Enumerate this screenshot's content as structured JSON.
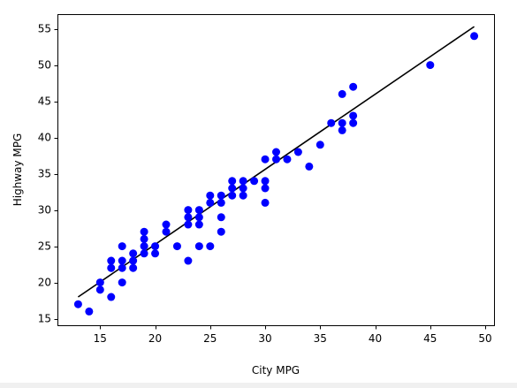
{
  "chart_data": {
    "type": "scatter",
    "title": "",
    "xlabel": "City MPG",
    "ylabel": "Highway MPG",
    "xlim": [
      11.2,
      50.8
    ],
    "ylim": [
      14.1,
      56.9
    ],
    "xticks": [
      15,
      20,
      25,
      30,
      35,
      40,
      45,
      50
    ],
    "yticks": [
      15,
      20,
      25,
      30,
      35,
      40,
      45,
      50,
      55
    ],
    "grid": false,
    "colors": {
      "points": "#0000ff",
      "line": "#000000"
    },
    "series": [
      {
        "kind": "scatter",
        "points": [
          [
            13,
            17
          ],
          [
            14,
            16
          ],
          [
            15,
            19
          ],
          [
            15,
            20
          ],
          [
            16,
            18
          ],
          [
            16,
            22
          ],
          [
            16,
            23
          ],
          [
            17,
            20
          ],
          [
            17,
            22
          ],
          [
            17,
            23
          ],
          [
            17,
            25
          ],
          [
            18,
            22
          ],
          [
            18,
            23
          ],
          [
            18,
            24
          ],
          [
            19,
            24
          ],
          [
            19,
            25
          ],
          [
            19,
            26
          ],
          [
            19,
            27
          ],
          [
            20,
            24
          ],
          [
            20,
            25
          ],
          [
            21,
            27
          ],
          [
            21,
            28
          ],
          [
            22,
            25
          ],
          [
            23,
            23
          ],
          [
            23,
            28
          ],
          [
            23,
            29
          ],
          [
            23,
            30
          ],
          [
            24,
            25
          ],
          [
            24,
            28
          ],
          [
            24,
            29
          ],
          [
            24,
            30
          ],
          [
            25,
            25
          ],
          [
            25,
            31
          ],
          [
            25,
            32
          ],
          [
            26,
            27
          ],
          [
            26,
            29
          ],
          [
            26,
            31
          ],
          [
            26,
            32
          ],
          [
            27,
            32
          ],
          [
            27,
            33
          ],
          [
            27,
            34
          ],
          [
            28,
            32
          ],
          [
            28,
            33
          ],
          [
            28,
            34
          ],
          [
            29,
            34
          ],
          [
            30,
            31
          ],
          [
            30,
            33
          ],
          [
            30,
            34
          ],
          [
            30,
            37
          ],
          [
            31,
            37
          ],
          [
            31,
            38
          ],
          [
            32,
            37
          ],
          [
            33,
            38
          ],
          [
            34,
            36
          ],
          [
            35,
            39
          ],
          [
            36,
            42
          ],
          [
            37,
            41
          ],
          [
            37,
            42
          ],
          [
            37,
            46
          ],
          [
            38,
            42
          ],
          [
            38,
            43
          ],
          [
            38,
            47
          ],
          [
            45,
            50
          ],
          [
            49,
            54
          ]
        ]
      },
      {
        "kind": "line",
        "points": [
          [
            13,
            18.0
          ],
          [
            49,
            55.3
          ]
        ]
      }
    ]
  }
}
